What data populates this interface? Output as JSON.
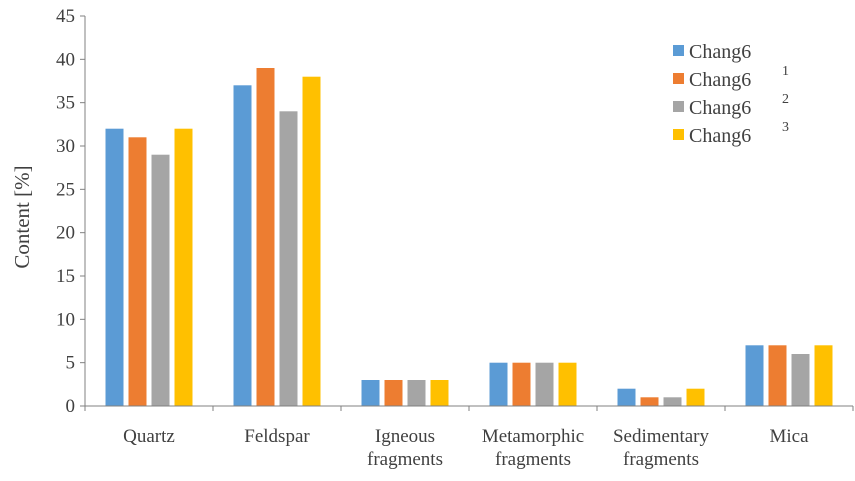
{
  "chart_data": {
    "type": "bar",
    "title": "",
    "xlabel": "",
    "ylabel": "Content [%]",
    "ylim": [
      0,
      45
    ],
    "yticks": [
      0,
      5,
      10,
      15,
      20,
      25,
      30,
      35,
      40,
      45
    ],
    "grid": false,
    "legend_position": "top-right",
    "categories": [
      [
        "Quartz"
      ],
      [
        "Feldspar"
      ],
      [
        "Igneous",
        "fragments"
      ],
      [
        "Metamorphic",
        "fragments"
      ],
      [
        "Sedimentary",
        "fragments"
      ],
      [
        "Mica"
      ]
    ],
    "series": [
      {
        "name": "Chang6",
        "subscript": "1",
        "color": "#5B9BD5",
        "values": [
          32,
          37,
          3,
          5,
          2,
          7
        ]
      },
      {
        "name": "Chang6",
        "subscript": "2",
        "color": "#ED7D31",
        "values": [
          31,
          39,
          3,
          5,
          1,
          7
        ]
      },
      {
        "name": "Chang6",
        "subscript": "3",
        "color": "#A5A5A5",
        "values": [
          29,
          34,
          3,
          5,
          1,
          6
        ]
      },
      {
        "name": "Chang6",
        "subscript": "",
        "color": "#FFC000",
        "values": [
          32,
          38,
          3,
          5,
          2,
          7
        ]
      }
    ]
  }
}
